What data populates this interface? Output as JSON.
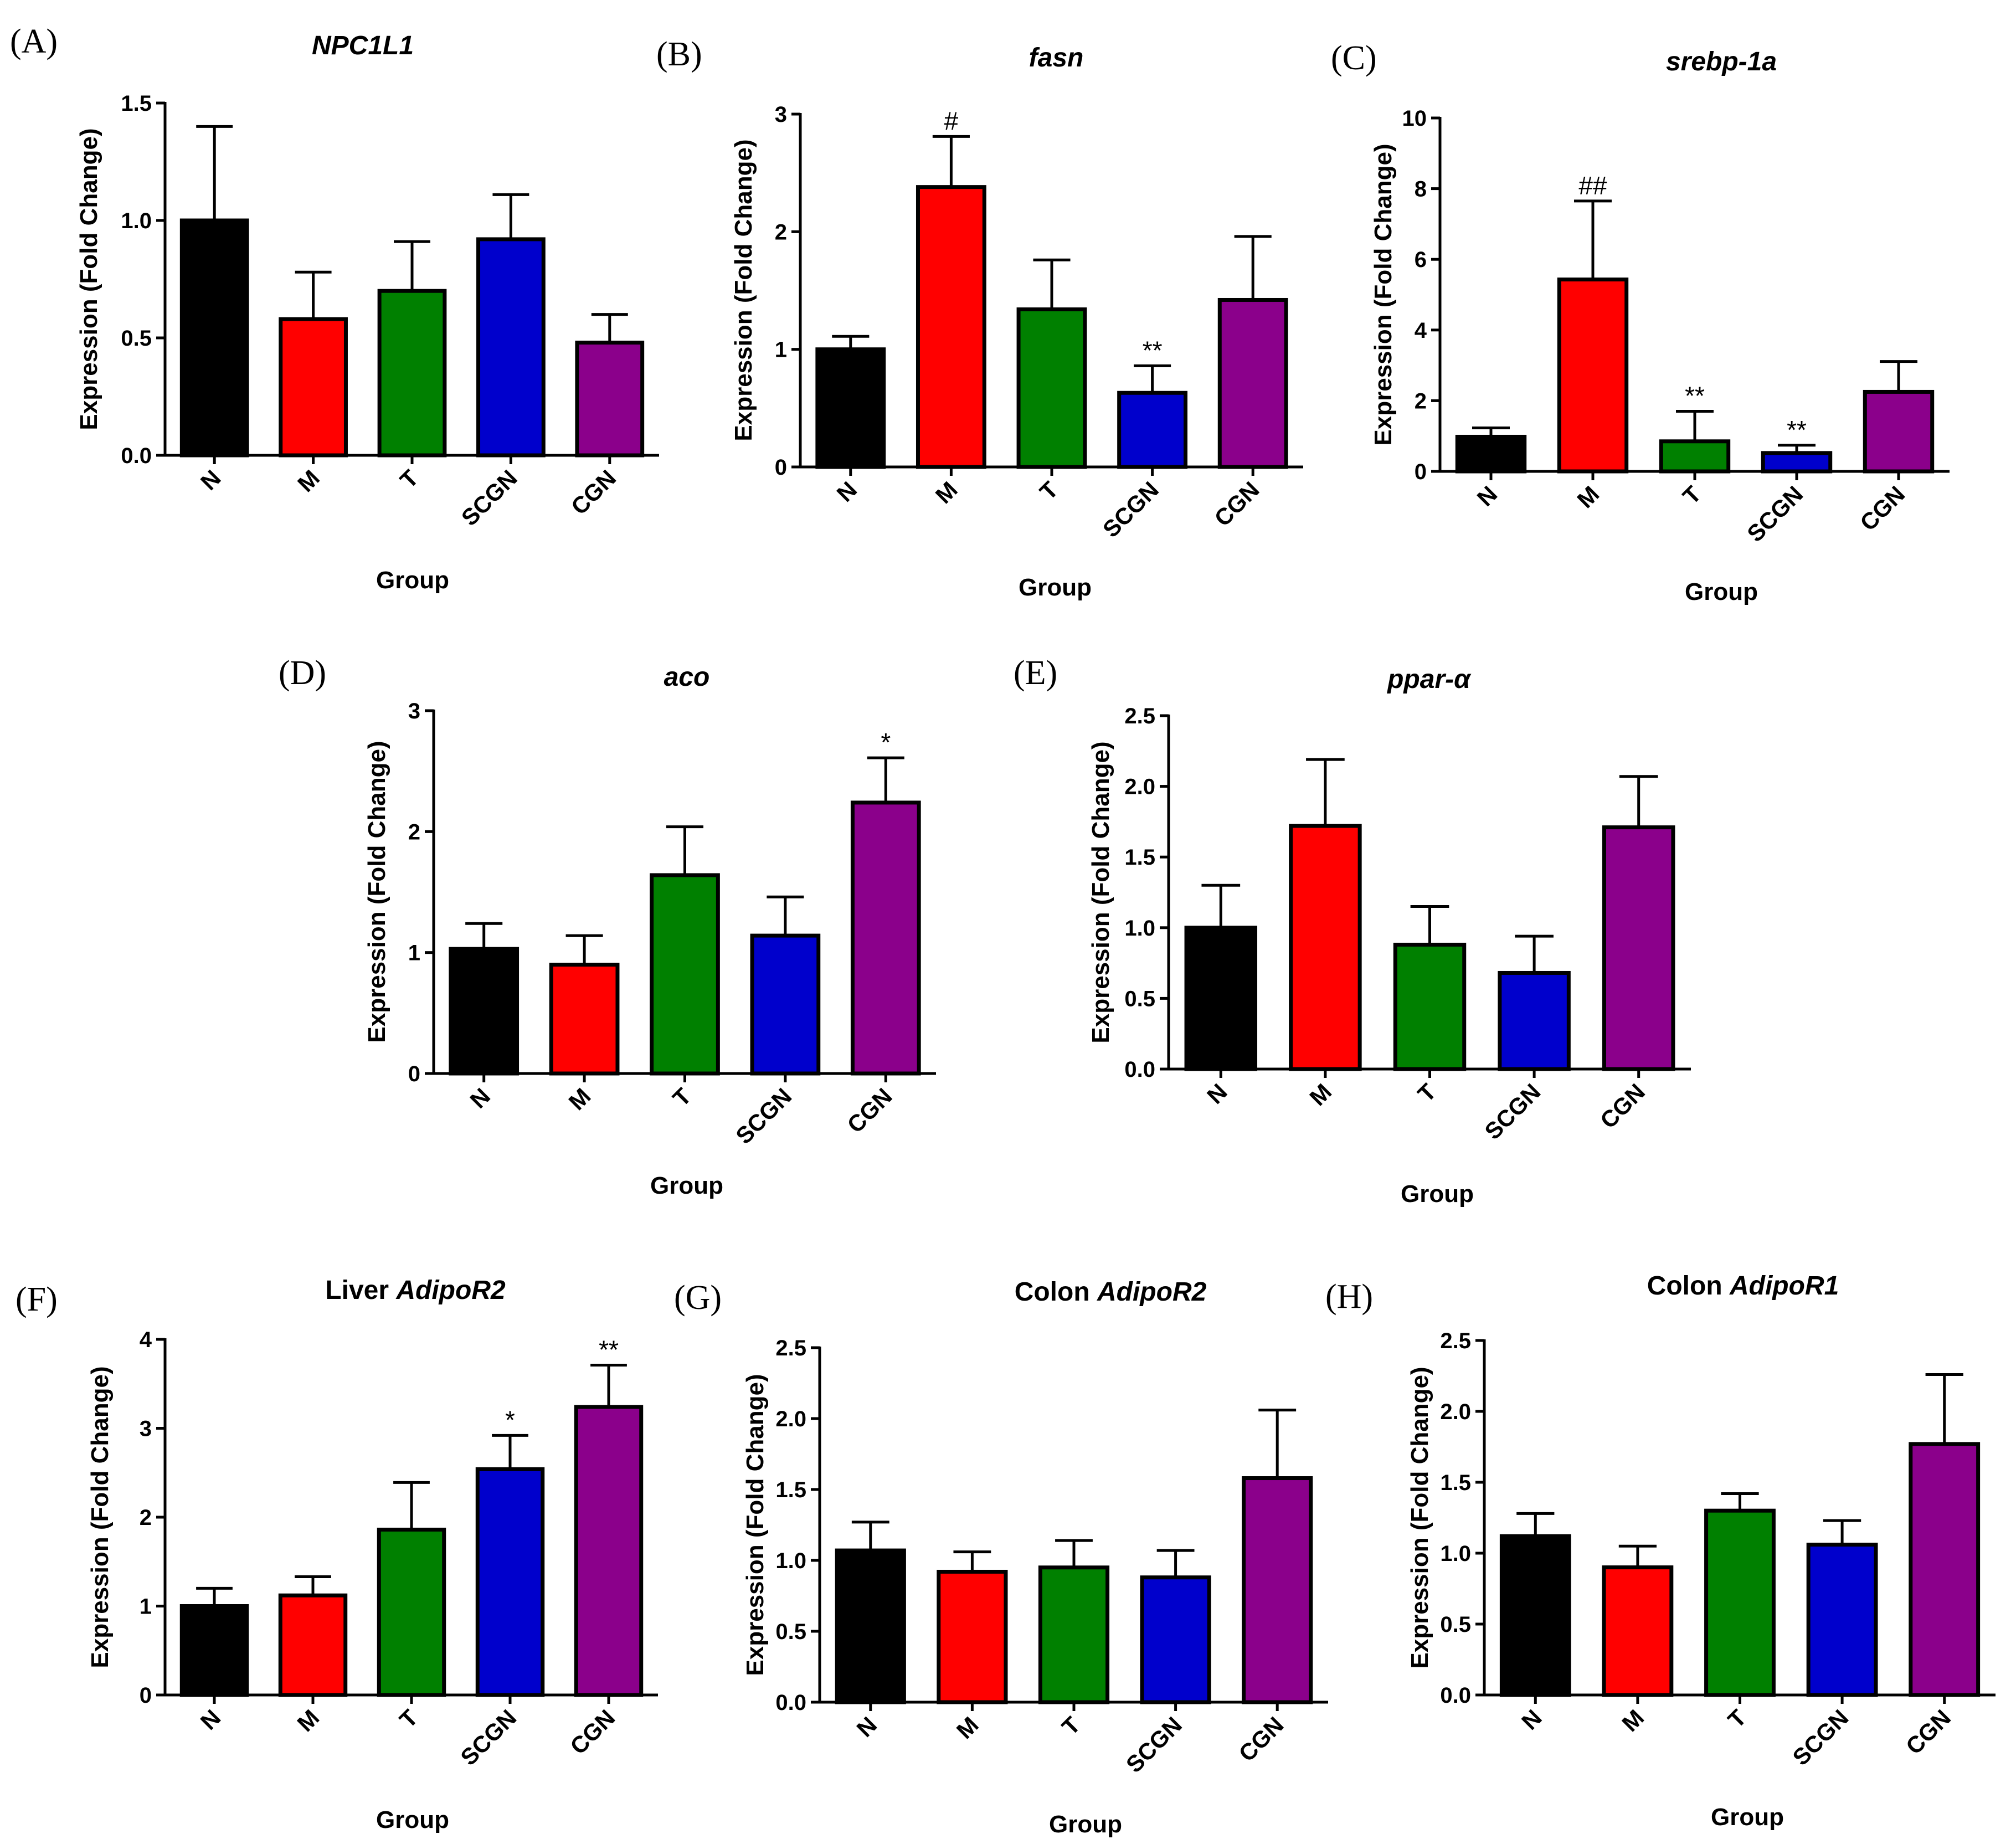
{
  "figure": {
    "categories": [
      "N",
      "M",
      "T",
      "SCGN",
      "CGN"
    ],
    "bar_colors": [
      "#000000",
      "#ff0000",
      "#008000",
      "#0000cc",
      "#8b008b"
    ]
  },
  "chart_data": [
    {
      "panel": "(A)",
      "type": "bar",
      "title_plain": "",
      "title_italic": "NPC1L1",
      "xlabel": "Group",
      "ylabel": "Expression (Fold Change)",
      "ylim": [
        0,
        1.5
      ],
      "yticks": [
        "0.0",
        "0.5",
        "1.0",
        "1.5"
      ],
      "categories": [
        "N",
        "M",
        "T",
        "SCGN",
        "CGN"
      ],
      "values": [
        1.0,
        0.58,
        0.7,
        0.92,
        0.48
      ],
      "errors": [
        0.4,
        0.2,
        0.21,
        0.19,
        0.12
      ],
      "significance": [
        "",
        "",
        "",
        "",
        ""
      ]
    },
    {
      "panel": "(B)",
      "type": "bar",
      "title_plain": "",
      "title_italic": "fasn",
      "xlabel": "Group",
      "ylabel": "Expression (Fold Change)",
      "ylim": [
        0,
        3
      ],
      "yticks": [
        "0",
        "1",
        "2",
        "3"
      ],
      "categories": [
        "N",
        "M",
        "T",
        "SCGN",
        "CGN"
      ],
      "values": [
        1.0,
        2.38,
        1.34,
        0.63,
        1.42
      ],
      "errors": [
        0.11,
        0.43,
        0.42,
        0.23,
        0.54
      ],
      "significance": [
        "",
        "#",
        "",
        "**",
        ""
      ]
    },
    {
      "panel": "(C)",
      "type": "bar",
      "title_plain": "",
      "title_italic": "srebp-1a",
      "xlabel": "Group",
      "ylabel": "Expression (Fold Change)",
      "ylim": [
        0,
        10
      ],
      "yticks": [
        "0",
        "2",
        "4",
        "6",
        "8",
        "10"
      ],
      "categories": [
        "N",
        "M",
        "T",
        "SCGN",
        "CGN"
      ],
      "values": [
        0.98,
        5.43,
        0.85,
        0.52,
        2.25
      ],
      "errors": [
        0.25,
        2.22,
        0.85,
        0.22,
        0.86
      ],
      "significance": [
        "",
        "##",
        "**",
        "**",
        ""
      ]
    },
    {
      "panel": "(D)",
      "type": "bar",
      "title_plain": "",
      "title_italic": "aco",
      "xlabel": "Group",
      "ylabel": "Expression (Fold Change)",
      "ylim": [
        0,
        3
      ],
      "yticks": [
        "0",
        "1",
        "2",
        "3"
      ],
      "categories": [
        "N",
        "M",
        "T",
        "SCGN",
        "CGN"
      ],
      "values": [
        1.03,
        0.9,
        1.64,
        1.14,
        2.24
      ],
      "errors": [
        0.21,
        0.24,
        0.4,
        0.32,
        0.37
      ],
      "significance": [
        "",
        "",
        "",
        "",
        "*"
      ]
    },
    {
      "panel": "(E)",
      "type": "bar",
      "title_plain": "",
      "title_italic": "ppar-α",
      "xlabel": "Group",
      "ylabel": "Expression (Fold Change)",
      "ylim": [
        0,
        2.5
      ],
      "yticks": [
        "0.0",
        "0.5",
        "1.0",
        "1.5",
        "2.0",
        "2.5"
      ],
      "categories": [
        "N",
        "M",
        "T",
        "SCGN",
        "CGN"
      ],
      "values": [
        1.0,
        1.72,
        0.88,
        0.68,
        1.71
      ],
      "errors": [
        0.3,
        0.47,
        0.27,
        0.26,
        0.36
      ],
      "significance": [
        "",
        "",
        "",
        "",
        ""
      ]
    },
    {
      "panel": "(F)",
      "type": "bar",
      "title_plain": "Liver ",
      "title_italic": "AdipoR2",
      "xlabel": "Group",
      "ylabel": "Expression (Fold Change)",
      "ylim": [
        0,
        4
      ],
      "yticks": [
        "0",
        "1",
        "2",
        "3",
        "4"
      ],
      "categories": [
        "N",
        "M",
        "T",
        "SCGN",
        "CGN"
      ],
      "values": [
        1.0,
        1.12,
        1.86,
        2.54,
        3.24
      ],
      "errors": [
        0.2,
        0.21,
        0.53,
        0.38,
        0.47
      ],
      "significance": [
        "",
        "",
        "",
        "*",
        "**"
      ]
    },
    {
      "panel": "(G)",
      "type": "bar",
      "title_plain": "Colon ",
      "title_italic": "AdipoR2",
      "xlabel": "Group",
      "ylabel": "Expression (Fold Change)",
      "ylim": [
        0,
        2.5
      ],
      "yticks": [
        "0.0",
        "0.5",
        "1.0",
        "1.5",
        "2.0",
        "2.5"
      ],
      "categories": [
        "N",
        "M",
        "T",
        "SCGN",
        "CGN"
      ],
      "values": [
        1.07,
        0.92,
        0.95,
        0.88,
        1.58
      ],
      "errors": [
        0.2,
        0.14,
        0.19,
        0.19,
        0.48
      ],
      "significance": [
        "",
        "",
        "",
        "",
        ""
      ]
    },
    {
      "panel": "(H)",
      "type": "bar",
      "title_plain": "Colon ",
      "title_italic": "AdipoR1",
      "xlabel": "Group",
      "ylabel": "Expression (Fold Change)",
      "ylim": [
        0,
        2.5
      ],
      "yticks": [
        "0.0",
        "0.5",
        "1.0",
        "1.5",
        "2.0",
        "2.5"
      ],
      "categories": [
        "N",
        "M",
        "T",
        "SCGN",
        "CGN"
      ],
      "values": [
        1.12,
        0.9,
        1.3,
        1.06,
        1.77
      ],
      "errors": [
        0.16,
        0.15,
        0.12,
        0.17,
        0.49
      ],
      "significance": [
        "",
        "",
        "",
        "",
        ""
      ]
    }
  ]
}
